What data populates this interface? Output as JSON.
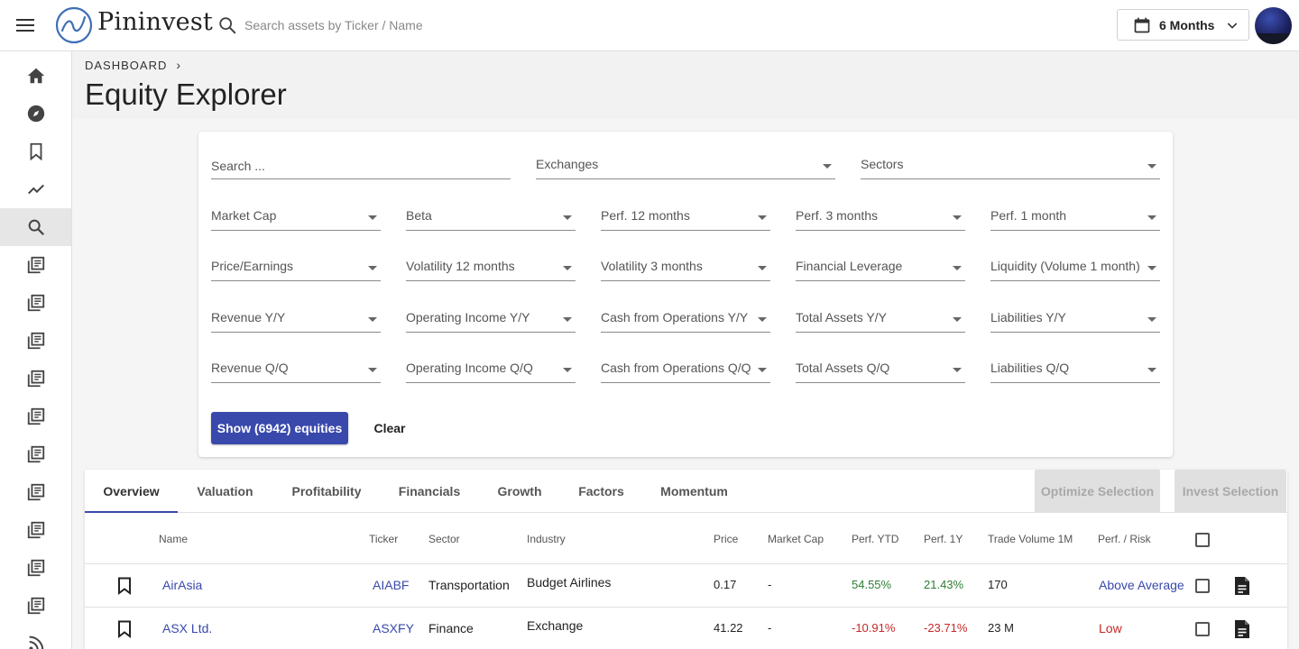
{
  "app": {
    "brand": "Pininvest",
    "search_placeholder": "Search assets by Ticker / Name",
    "period": "6 Months"
  },
  "sidebar": {
    "items": [
      {
        "icon": "home-icon"
      },
      {
        "icon": "compass-icon"
      },
      {
        "icon": "bookmark-icon"
      },
      {
        "icon": "trending-icon"
      },
      {
        "icon": "search-icon",
        "active": true
      },
      {
        "icon": "library-icon"
      },
      {
        "icon": "library-icon"
      },
      {
        "icon": "library-icon"
      },
      {
        "icon": "library-icon"
      },
      {
        "icon": "library-icon"
      },
      {
        "icon": "library-icon"
      },
      {
        "icon": "library-icon"
      },
      {
        "icon": "library-icon"
      },
      {
        "icon": "library-icon"
      },
      {
        "icon": "library-icon"
      },
      {
        "icon": "rss-icon"
      }
    ]
  },
  "header": {
    "breadcrumb": "DASHBOARD",
    "breadcrumb_sep": "›",
    "title": "Equity Explorer"
  },
  "filters": {
    "search_placeholder": "Search ...",
    "exchanges": "Exchanges",
    "sectors": "Sectors",
    "rows": [
      [
        "Market Cap",
        "Beta",
        "Perf. 12 months",
        "Perf. 3 months",
        "Perf. 1 month"
      ],
      [
        "Price/Earnings",
        "Volatility 12 months",
        "Volatility 3 months",
        "Financial Leverage",
        "Liquidity (Volume 1 month)"
      ],
      [
        "Revenue Y/Y",
        "Operating Income Y/Y",
        "Cash from Operations Y/Y",
        "Total Assets Y/Y",
        "Liabilities Y/Y"
      ],
      [
        "Revenue Q/Q",
        "Operating Income Q/Q",
        "Cash from Operations Q/Q",
        "Total Assets Q/Q",
        "Liabilities Q/Q"
      ]
    ],
    "show_button": "Show (6942) equities",
    "clear_button": "Clear"
  },
  "results": {
    "tabs": [
      "Overview",
      "Valuation",
      "Profitability",
      "Financials",
      "Growth",
      "Factors",
      "Momentum"
    ],
    "active_tab": "Overview",
    "optimize_button": "Optimize Selection",
    "invest_button": "Invest Selection",
    "columns": [
      "Name",
      "Ticker",
      "Sector",
      "Industry",
      "Price",
      "Market Cap",
      "Perf. YTD",
      "Perf. 1Y",
      "Trade Volume 1M",
      "Perf. / Risk"
    ],
    "rows": [
      {
        "name": "AirAsia",
        "ticker": "AIABF",
        "sector": "Transportation",
        "industry": "Budget Airlines",
        "price": "0.17",
        "market_cap": "-",
        "perf_ytd": "54.55%",
        "perf_1y": "21.43%",
        "volume": "170",
        "risk": "Above Average",
        "ytd_trend": "pos",
        "y1_trend": "pos",
        "risk_color": "#3949ab"
      },
      {
        "name": "ASX Ltd.",
        "ticker": "ASXFY",
        "sector": "Finance",
        "industry": "Exchange",
        "price": "41.22",
        "market_cap": "-",
        "perf_ytd": "-10.91%",
        "perf_1y": "-23.71%",
        "volume": "23 M",
        "risk": "Low",
        "ytd_trend": "neg",
        "y1_trend": "neg",
        "risk_color": "#c62828"
      }
    ]
  },
  "colors": {
    "accent": "#3949ab",
    "positive": "#2e7d32",
    "negative": "#c62828"
  }
}
